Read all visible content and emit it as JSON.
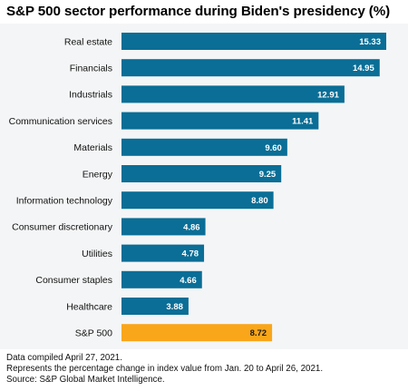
{
  "chart_data": {
    "type": "bar",
    "orientation": "horizontal",
    "title": "S&P 500 sector performance during Biden's presidency (%)",
    "categories": [
      "Real estate",
      "Financials",
      "Industrials",
      "Communication services",
      "Materials",
      "Energy",
      "Information technology",
      "Consumer discretionary",
      "Utilities",
      "Consumer staples",
      "Healthcare",
      "S&P 500"
    ],
    "values": [
      15.33,
      14.95,
      12.91,
      11.41,
      9.6,
      9.25,
      8.8,
      4.86,
      4.78,
      4.66,
      3.88,
      8.72
    ],
    "value_labels": [
      "15.33",
      "14.95",
      "12.91",
      "11.41",
      "9.60",
      "9.25",
      "8.80",
      "4.86",
      "4.78",
      "4.66",
      "3.88",
      "8.72"
    ],
    "colors": {
      "sector_bar": "#0a6e96",
      "benchmark_bar": "#f9a61a",
      "sector_label_text": "#ffffff",
      "benchmark_label_text": "#1a1a1a"
    },
    "highlight_category": "S&P 500",
    "xlim": [
      0,
      15.33
    ],
    "grid": false,
    "legend": "none"
  },
  "footnotes": {
    "line1": "Data compiled April 27, 2021.",
    "line2": "Represents the percentage change in index value from Jan. 20 to April 26, 2021.",
    "line3": "Source: S&P Global Market Intelligence."
  }
}
